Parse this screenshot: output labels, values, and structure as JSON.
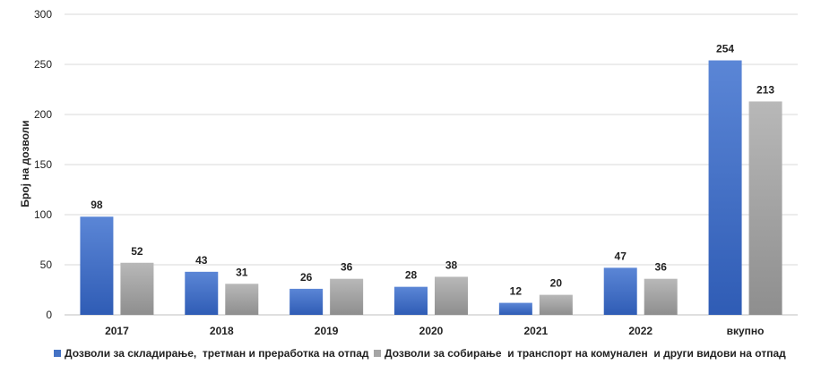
{
  "chart_data": {
    "type": "bar",
    "categories": [
      "2017",
      "2018",
      "2019",
      "2020",
      "2021",
      "2022",
      "вкупно"
    ],
    "series": [
      {
        "name": "Дозволи за складирање,  третман и преработка на отпад",
        "values": [
          98,
          43,
          26,
          28,
          12,
          47,
          254
        ],
        "color": "#4472c4"
      },
      {
        "name": "Дозволи за собирање  и транспорт на комунален  и други видови на отпад",
        "values": [
          52,
          31,
          36,
          38,
          20,
          36,
          213
        ],
        "color": "#a5a5a5"
      }
    ],
    "ylabel": "Број на дозволи",
    "xlabel": "",
    "ylim": [
      0,
      300
    ],
    "yticks": [
      0,
      50,
      100,
      150,
      200,
      250,
      300
    ],
    "grid": true,
    "legend": "bottom-left"
  }
}
